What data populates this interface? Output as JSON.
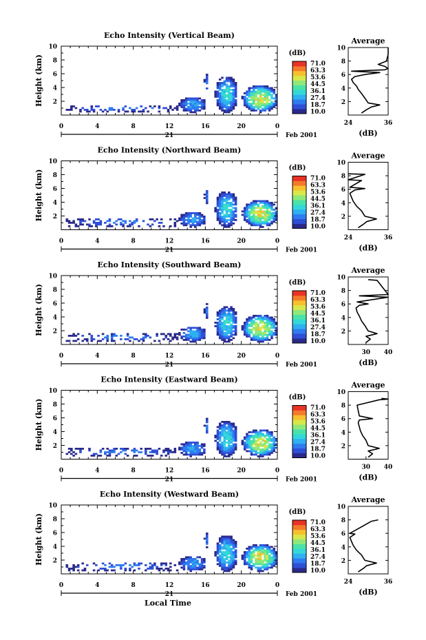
{
  "bottom_xlabel": "Local Time",
  "colorbar": {
    "unit": "(dB)",
    "ticks": [
      "71.0",
      "63.3",
      "53.6",
      "44.5",
      "36.1",
      "27.4",
      "18.7",
      "10.0"
    ],
    "colors": [
      "#2a2a8c",
      "#2e4fd6",
      "#2f7bef",
      "#2fb0f0",
      "#33d8d8",
      "#4be2a8",
      "#8fe87a",
      "#d8e84a",
      "#f7c02e",
      "#f47a2a",
      "#e83226"
    ]
  },
  "shared_axes": {
    "ylabel": "Height (km)",
    "yticks": [
      "2",
      "4",
      "6",
      "8",
      "10"
    ],
    "xticks": [
      "0",
      "4",
      "8",
      "12",
      "16",
      "20",
      "0"
    ],
    "date_day": "21",
    "date_text": "Feb 2001",
    "avg_title": "Average",
    "avg_xlabel": "(dB)"
  },
  "chart_data": [
    {
      "type": "heatmap",
      "title": "Echo Intensity (Vertical Beam)",
      "x_unit": "Local Time (h)",
      "xlim": [
        0,
        24
      ],
      "ylim": [
        0,
        10
      ],
      "echo_regions": [
        {
          "x": [
            0.5,
            13.0
          ],
          "y": [
            0.4,
            1.3
          ],
          "peak_dB": 25
        },
        {
          "x": [
            13.0,
            16.0
          ],
          "y": [
            0.3,
            2.5
          ],
          "peak_dB": 32
        },
        {
          "x": [
            15.8,
            16.2
          ],
          "y": [
            3.5,
            6.0
          ],
          "peak_dB": 25
        },
        {
          "x": [
            17.0,
            19.5
          ],
          "y": [
            0.3,
            5.5
          ],
          "peak_dB": 40
        },
        {
          "x": [
            20.0,
            24.0
          ],
          "y": [
            0.3,
            4.2
          ],
          "peak_dB": 60
        }
      ],
      "average": {
        "xticks": [
          "24",
          "36"
        ],
        "xlim": [
          24,
          36
        ],
        "ylim": [
          0,
          10
        ],
        "profile": [
          [
            28,
            0.3
          ],
          [
            29.5,
            0.8
          ],
          [
            31,
            1.2
          ],
          [
            33.5,
            1.5
          ],
          [
            30,
            1.8
          ],
          [
            29,
            2.5
          ],
          [
            28,
            3.2
          ],
          [
            27,
            3.8
          ],
          [
            26.5,
            4.3
          ],
          [
            25.5,
            4.8
          ],
          [
            25,
            5.3
          ],
          [
            26,
            5.7
          ],
          [
            29,
            6.0
          ],
          [
            33.5,
            6.3
          ],
          [
            25,
            6.5
          ],
          [
            35,
            6.7
          ],
          [
            36,
            6.9
          ],
          [
            35,
            7.2
          ],
          [
            33,
            7.5
          ],
          [
            35.5,
            8.0
          ],
          [
            36,
            9.0
          ],
          [
            36,
            10
          ]
        ]
      }
    },
    {
      "type": "heatmap",
      "title": "Echo Intensity (Northward Beam)",
      "x_unit": "Local Time (h)",
      "xlim": [
        0,
        24
      ],
      "ylim": [
        0,
        10
      ],
      "echo_regions": [
        {
          "x": [
            0.5,
            13.0
          ],
          "y": [
            0.4,
            1.6
          ],
          "peak_dB": 25
        },
        {
          "x": [
            13.0,
            16.0
          ],
          "y": [
            0.3,
            2.5
          ],
          "peak_dB": 32
        },
        {
          "x": [
            15.8,
            16.2
          ],
          "y": [
            3.5,
            6.0
          ],
          "peak_dB": 25
        },
        {
          "x": [
            17.0,
            19.5
          ],
          "y": [
            0.3,
            5.5
          ],
          "peak_dB": 40
        },
        {
          "x": [
            20.0,
            24.0
          ],
          "y": [
            0.3,
            4.2
          ],
          "peak_dB": 60
        }
      ],
      "average": {
        "xticks": [
          "24",
          "36"
        ],
        "xlim": [
          24,
          36
        ],
        "ylim": [
          0,
          10
        ],
        "profile": [
          [
            27,
            0.3
          ],
          [
            28.5,
            0.8
          ],
          [
            29.5,
            1.2
          ],
          [
            32.5,
            1.6
          ],
          [
            29,
            2.0
          ],
          [
            28,
            2.8
          ],
          [
            26.5,
            3.5
          ],
          [
            25.5,
            4.2
          ],
          [
            25,
            4.8
          ],
          [
            24.5,
            5.4
          ],
          [
            26,
            5.9
          ],
          [
            29,
            6.1
          ],
          [
            24.5,
            6.3
          ],
          [
            28,
            7.3
          ],
          [
            24,
            7.4
          ],
          [
            29,
            8.2
          ],
          [
            24,
            8.3
          ]
        ]
      }
    },
    {
      "type": "heatmap",
      "title": "Echo Intensity (Southward Beam)",
      "x_unit": "Local Time (h)",
      "xlim": [
        0,
        24
      ],
      "ylim": [
        0,
        10
      ],
      "echo_regions": [
        {
          "x": [
            0.5,
            13.0
          ],
          "y": [
            0.4,
            1.5
          ],
          "peak_dB": 25
        },
        {
          "x": [
            13.0,
            16.0
          ],
          "y": [
            0.3,
            2.5
          ],
          "peak_dB": 32
        },
        {
          "x": [
            15.8,
            16.2
          ],
          "y": [
            3.5,
            6.0
          ],
          "peak_dB": 25
        },
        {
          "x": [
            17.0,
            19.5
          ],
          "y": [
            0.3,
            5.5
          ],
          "peak_dB": 40
        },
        {
          "x": [
            20.0,
            24.0
          ],
          "y": [
            0.3,
            4.2
          ],
          "peak_dB": 60
        }
      ],
      "average": {
        "xticks": [
          "30",
          "40"
        ],
        "xlim": [
          22,
          40
        ],
        "ylim": [
          0,
          10
        ],
        "profile": [
          [
            30,
            0.3
          ],
          [
            32,
            0.8
          ],
          [
            30,
            1.2
          ],
          [
            35,
            1.6
          ],
          [
            31,
            2.0
          ],
          [
            29.5,
            2.8
          ],
          [
            28,
            3.5
          ],
          [
            27,
            4.2
          ],
          [
            26,
            4.8
          ],
          [
            25.5,
            5.4
          ],
          [
            27,
            5.8
          ],
          [
            31,
            6.0
          ],
          [
            26,
            6.3
          ],
          [
            40,
            7.0
          ],
          [
            27,
            7.2
          ],
          [
            40,
            7.4
          ],
          [
            35,
            9.5
          ],
          [
            31,
            9.6
          ]
        ]
      }
    },
    {
      "type": "heatmap",
      "title": "Echo Intensity (Eastward Beam)",
      "x_unit": "Local Time (h)",
      "xlim": [
        0,
        24
      ],
      "ylim": [
        0,
        10
      ],
      "echo_regions": [
        {
          "x": [
            0.5,
            13.0
          ],
          "y": [
            0.4,
            1.5
          ],
          "peak_dB": 25
        },
        {
          "x": [
            13.0,
            16.0
          ],
          "y": [
            0.3,
            2.5
          ],
          "peak_dB": 32
        },
        {
          "x": [
            15.8,
            16.2
          ],
          "y": [
            3.5,
            6.0
          ],
          "peak_dB": 25
        },
        {
          "x": [
            17.0,
            19.5
          ],
          "y": [
            0.3,
            5.5
          ],
          "peak_dB": 40
        },
        {
          "x": [
            20.0,
            24.0
          ],
          "y": [
            0.3,
            4.2
          ],
          "peak_dB": 60
        }
      ],
      "average": {
        "xticks": [
          "30",
          "40"
        ],
        "xlim": [
          22,
          40
        ],
        "ylim": [
          0,
          10
        ],
        "profile": [
          [
            31,
            0.3
          ],
          [
            33,
            0.8
          ],
          [
            31,
            1.2
          ],
          [
            36,
            1.6
          ],
          [
            31,
            2.0
          ],
          [
            30,
            2.8
          ],
          [
            28.5,
            3.5
          ],
          [
            27.5,
            4.2
          ],
          [
            27,
            4.8
          ],
          [
            26.5,
            5.4
          ],
          [
            27,
            5.8
          ],
          [
            33,
            6.0
          ],
          [
            27,
            6.4
          ],
          [
            26,
            8.0
          ],
          [
            36,
            8.8
          ],
          [
            40,
            8.9
          ],
          [
            37,
            9.0
          ]
        ]
      }
    },
    {
      "type": "heatmap",
      "title": "Echo Intensity (Westward Beam)",
      "x_unit": "Local Time (h)",
      "xlim": [
        0,
        24
      ],
      "ylim": [
        0,
        10
      ],
      "echo_regions": [
        {
          "x": [
            0.5,
            13.0
          ],
          "y": [
            0.4,
            1.6
          ],
          "peak_dB": 25
        },
        {
          "x": [
            13.0,
            16.0
          ],
          "y": [
            0.3,
            2.5
          ],
          "peak_dB": 32
        },
        {
          "x": [
            15.8,
            16.2
          ],
          "y": [
            3.5,
            6.0
          ],
          "peak_dB": 25
        },
        {
          "x": [
            17.0,
            19.5
          ],
          "y": [
            0.3,
            5.5
          ],
          "peak_dB": 40
        },
        {
          "x": [
            20.0,
            24.0
          ],
          "y": [
            0.3,
            4.2
          ],
          "peak_dB": 60
        }
      ],
      "average": {
        "xticks": [
          "24",
          "36"
        ],
        "xlim": [
          24,
          36
        ],
        "ylim": [
          0,
          10
        ],
        "profile": [
          [
            27,
            0.3
          ],
          [
            28.5,
            0.8
          ],
          [
            29.5,
            1.2
          ],
          [
            32.5,
            1.6
          ],
          [
            29,
            2.0
          ],
          [
            28,
            2.8
          ],
          [
            26.5,
            3.5
          ],
          [
            25.5,
            4.2
          ],
          [
            25,
            4.8
          ],
          [
            24.5,
            5.4
          ],
          [
            26,
            5.9
          ],
          [
            24.5,
            6.0
          ],
          [
            31,
            7.8
          ],
          [
            33,
            8.0
          ]
        ]
      }
    }
  ]
}
